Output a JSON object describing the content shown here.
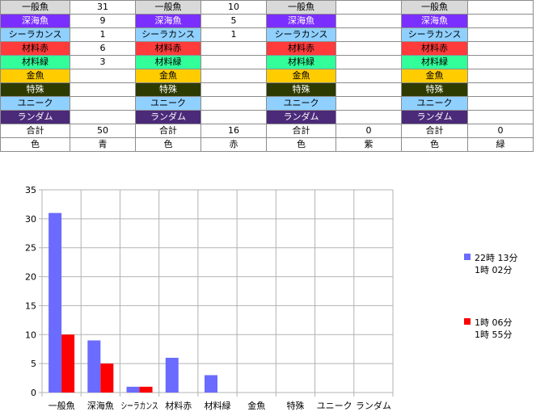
{
  "table": {
    "categories": [
      {
        "label": "一般魚",
        "bg": "#d9d9d9",
        "fg": "#000000"
      },
      {
        "label": "深海魚",
        "bg": "#7b2fff",
        "fg": "#ffffff"
      },
      {
        "label": "シーラカンス",
        "bg": "#8fd0ff",
        "fg": "#000000"
      },
      {
        "label": "材料赤",
        "bg": "#ff3b3b",
        "fg": "#000000"
      },
      {
        "label": "材料緑",
        "bg": "#33ff9a",
        "fg": "#000000"
      },
      {
        "label": "金魚",
        "bg": "#ffcc00",
        "fg": "#000000"
      },
      {
        "label": "特殊",
        "bg": "#2e3b00",
        "fg": "#ffffff"
      },
      {
        "label": "ユニーク",
        "bg": "#8fd0ff",
        "fg": "#000000"
      },
      {
        "label": "ランダム",
        "bg": "#4b2a7a",
        "fg": "#ffffff"
      }
    ],
    "groups": [
      {
        "values": [
          "31",
          "9",
          "1",
          "6",
          "3",
          "",
          "",
          "",
          ""
        ],
        "total": "50",
        "color": "青"
      },
      {
        "values": [
          "10",
          "5",
          "1",
          "",
          "",
          "",
          "",
          "",
          ""
        ],
        "total": "16",
        "color": "赤"
      },
      {
        "values": [
          "",
          "",
          "",
          "",
          "",
          "",
          "",
          "",
          ""
        ],
        "total": "0",
        "color": "紫"
      },
      {
        "values": [
          "",
          "",
          "",
          "",
          "",
          "",
          "",
          "",
          ""
        ],
        "total": "0",
        "color": "緑"
      }
    ],
    "total_label": "合計",
    "color_label": "色"
  },
  "chart_data": {
    "type": "bar",
    "categories": [
      "一般魚",
      "深海魚",
      "シーラカンス",
      "材料赤",
      "材料緑",
      "金魚",
      "特殊",
      "ユニーク",
      "ランダム"
    ],
    "series": [
      {
        "name": "22時 13分 1時 02分",
        "name_lines": [
          "22時 13分",
          "1時 02分"
        ],
        "color": "#6b6bff",
        "values": [
          31,
          9,
          1,
          6,
          3,
          0,
          0,
          0,
          0
        ]
      },
      {
        "name": "1時 06分 1時 55分",
        "name_lines": [
          "1時 06分",
          "1時 55分"
        ],
        "color": "#ff0000",
        "values": [
          10,
          5,
          1,
          0,
          0,
          0,
          0,
          0,
          0
        ]
      }
    ],
    "ylim": [
      0,
      35
    ],
    "yticks": [
      0,
      5,
      10,
      15,
      20,
      25,
      30,
      35
    ],
    "grid": true,
    "legend": "right"
  }
}
